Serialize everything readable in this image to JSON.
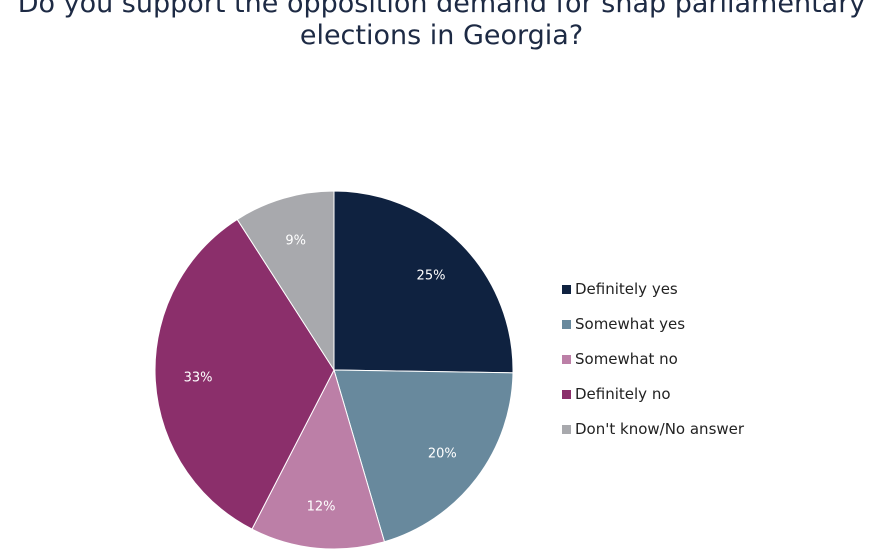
{
  "title_lines": [
    "Do you support the opposition demand for snap parliamentary",
    "elections in Georgia?"
  ],
  "chart_data": {
    "type": "pie",
    "title": "Do you support the opposition demand for snap parliamentary elections in Georgia?",
    "categories": [
      "Definitely yes",
      "Somewhat yes",
      "Somewhat no",
      "Definitely no",
      "Don't know/No answer"
    ],
    "values": [
      25,
      20,
      12,
      33,
      9
    ],
    "data_labels": [
      "25%",
      "20%",
      "12%",
      "33%",
      "9%"
    ],
    "colors": [
      "#0f2240",
      "#68899d",
      "#bc7fa7",
      "#8b2f6b",
      "#a8a9ad"
    ],
    "legend_position": "right"
  }
}
